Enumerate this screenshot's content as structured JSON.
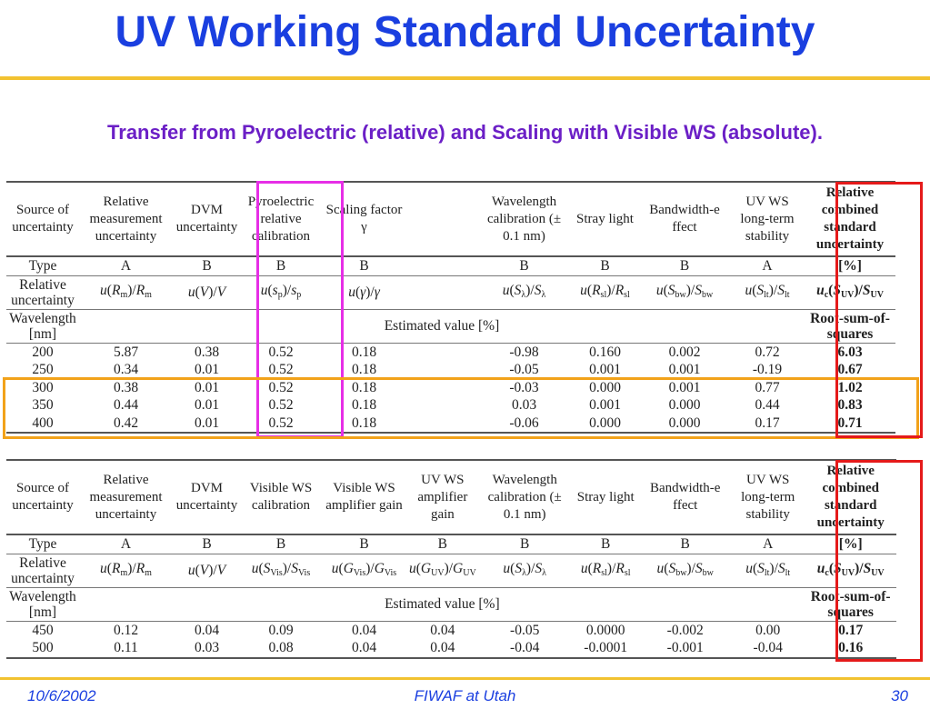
{
  "title": "UV Working Standard Uncertainty",
  "subtitle": "Transfer from Pyroelectric (relative) and Scaling with Visible WS (absolute).",
  "table1": {
    "headers": [
      "Source of uncertainty",
      "Relative measurement uncertainty",
      "DVM uncertainty",
      "Pyroelectric relative calibration",
      "Scaling factor γ",
      "",
      "Wavelength calibration (± 0.1 nm)",
      "Stray light",
      "Bandwidth-e ffect",
      "UV WS long-term stability",
      "Relative combined standard uncertainty"
    ],
    "type_label": "Type",
    "types": [
      "A",
      "B",
      "B",
      "B",
      "",
      "B",
      "B",
      "B",
      "A",
      "[%]"
    ],
    "relunc_label": "Relative uncertainty",
    "symbols": [
      "u(Rm)/Rm",
      "u(V)/V",
      "u(sp)/sp",
      "u(γ)/γ",
      "",
      "u(Sλ)/Sλ",
      "u(Rsl)/Rsl",
      "u(Sbw)/Sbw",
      "u(Slt)/Slt",
      "uc(SUV)/SUV"
    ],
    "wl_label": "Wavelength [nm]",
    "estimated": "Estimated value [%]",
    "rss": "Root-sum-of-squares",
    "rows": [
      [
        "200",
        "5.87",
        "0.38",
        "0.52",
        "0.18",
        "",
        "-0.98",
        "0.160",
        "0.002",
        "0.72",
        "6.03"
      ],
      [
        "250",
        "0.34",
        "0.01",
        "0.52",
        "0.18",
        "",
        "-0.05",
        "0.001",
        "0.001",
        "-0.19",
        "0.67"
      ],
      [
        "300",
        "0.38",
        "0.01",
        "0.52",
        "0.18",
        "",
        "-0.03",
        "0.000",
        "0.001",
        "0.77",
        "1.02"
      ],
      [
        "350",
        "0.44",
        "0.01",
        "0.52",
        "0.18",
        "",
        "0.03",
        "0.001",
        "0.000",
        "0.44",
        "0.83"
      ],
      [
        "400",
        "0.42",
        "0.01",
        "0.52",
        "0.18",
        "",
        "-0.06",
        "0.000",
        "0.000",
        "0.17",
        "0.71"
      ]
    ]
  },
  "table2": {
    "headers": [
      "Source of uncertainty",
      "Relative measurement uncertainty",
      "DVM uncertainty",
      "Visible WS calibration",
      "Visible WS amplifier gain",
      "UV WS amplifier gain",
      "Wavelength calibration (± 0.1 nm)",
      "Stray light",
      "Bandwidth-e ffect",
      "UV WS long-term stability",
      "Relative combined standard uncertainty"
    ],
    "type_label": "Type",
    "types": [
      "A",
      "B",
      "B",
      "B",
      "B",
      "B",
      "B",
      "B",
      "A",
      "[%]"
    ],
    "relunc_label": "Relative uncertainty",
    "symbols": [
      "u(Rm)/Rm",
      "u(V)/V",
      "u(SVis)/SVis",
      "u(GVis)/GVis",
      "u(GUV)/GUV",
      "u(Sλ)/Sλ",
      "u(Rsl)/Rsl",
      "u(Sbw)/Sbw",
      "u(Slt)/Slt",
      "uc(SUV)/SUV"
    ],
    "wl_label": "Wavelength [nm]",
    "estimated": "Estimated value [%]",
    "rss": "Root-sum-of-squares",
    "rows": [
      [
        "450",
        "0.12",
        "0.04",
        "0.09",
        "0.04",
        "0.04",
        "-0.05",
        "0.0000",
        "-0.002",
        "0.00",
        "0.17"
      ],
      [
        "500",
        "0.11",
        "0.03",
        "0.08",
        "0.04",
        "0.04",
        "-0.04",
        "-0.0001",
        "-0.001",
        "-0.04",
        "0.16"
      ]
    ]
  },
  "footer": {
    "date": "10/6/2002",
    "center": "FIWAF at Utah",
    "page": "30"
  },
  "colors": {
    "title": "#1a3fe0",
    "subtitle": "#6b1fc6",
    "rule": "#f2c230",
    "magenta_box": "#e62ee6",
    "red_box": "#e51a1a",
    "orange_box": "#f2a21a"
  }
}
